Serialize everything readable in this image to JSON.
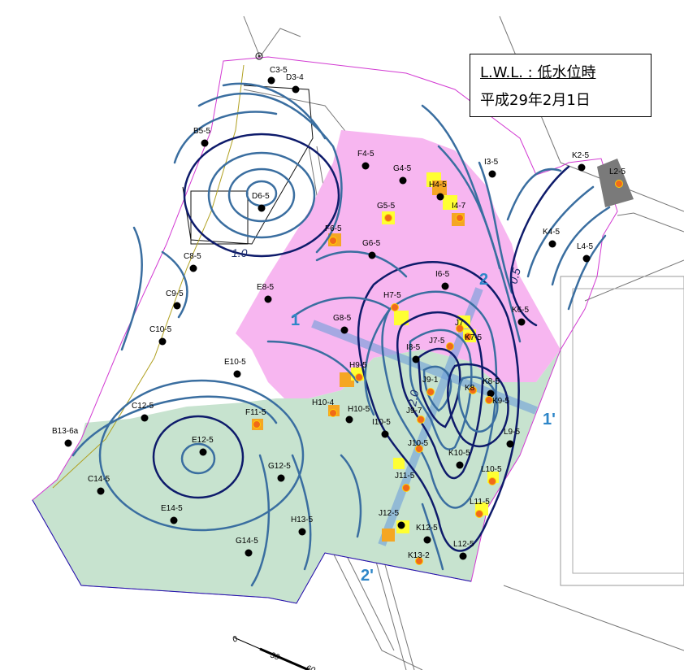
{
  "legend": {
    "title": "L.W.L. : 低水位時",
    "date": "平成29年2月1日"
  },
  "colors": {
    "pink_zone": "#f7b6f0",
    "green_zone": "#c7e3cf",
    "contour_blue": "#3a6ea0",
    "contour_dark": "#0e1b6b",
    "section_line": "#6e9fd8",
    "highlight_yellow": "#ffff33",
    "highlight_orange": "#f5a623",
    "well_dot": "#000000",
    "well_dot_orange": "#f06a1a",
    "boundary_magenta": "#d23ad2"
  },
  "contour_labels": [
    "1.0",
    "0.5",
    "2.0"
  ],
  "section_labels": [
    "1",
    "1'",
    "2",
    "2'"
  ],
  "scale": {
    "ticks": [
      "0",
      "30",
      "60"
    ]
  },
  "wells": [
    {
      "id": "C3-5",
      "type": "black"
    },
    {
      "id": "D3-4",
      "type": "black"
    },
    {
      "id": "B5-5",
      "type": "black"
    },
    {
      "id": "F4-5",
      "type": "black"
    },
    {
      "id": "G4-5",
      "type": "black"
    },
    {
      "id": "H4-5",
      "type": "black"
    },
    {
      "id": "I3-5",
      "type": "black"
    },
    {
      "id": "K2-5",
      "type": "black"
    },
    {
      "id": "L2-5",
      "type": "orange"
    },
    {
      "id": "D6-5",
      "type": "black"
    },
    {
      "id": "G5-5",
      "type": "orange"
    },
    {
      "id": "I4-7",
      "type": "orange"
    },
    {
      "id": "F6-5",
      "type": "orange"
    },
    {
      "id": "G6-5",
      "type": "black"
    },
    {
      "id": "K4-5",
      "type": "black"
    },
    {
      "id": "L4-5",
      "type": "black"
    },
    {
      "id": "C8-5",
      "type": "black"
    },
    {
      "id": "I6-5",
      "type": "black"
    },
    {
      "id": "E8-5",
      "type": "black"
    },
    {
      "id": "C9-5",
      "type": "black"
    },
    {
      "id": "H7-5",
      "type": "orange"
    },
    {
      "id": "K6-5",
      "type": "black"
    },
    {
      "id": "G8-5",
      "type": "black"
    },
    {
      "id": "C10-5",
      "type": "black"
    },
    {
      "id": "J7-5",
      "type": "orange"
    },
    {
      "id": "J7",
      "type": "orange"
    },
    {
      "id": "K7-5",
      "type": "orange"
    },
    {
      "id": "I8-5",
      "type": "black"
    },
    {
      "id": "E10-5",
      "type": "black"
    },
    {
      "id": "H9-5",
      "type": "orange"
    },
    {
      "id": "J9-1",
      "type": "orange"
    },
    {
      "id": "K8-5",
      "type": "black"
    },
    {
      "id": "K8",
      "type": "orange"
    },
    {
      "id": "K9-5",
      "type": "orange"
    },
    {
      "id": "C12-5",
      "type": "black"
    },
    {
      "id": "F11-5",
      "type": "orange"
    },
    {
      "id": "H10-4",
      "type": "orange"
    },
    {
      "id": "H10-5",
      "type": "black"
    },
    {
      "id": "I10-5",
      "type": "black"
    },
    {
      "id": "J9-7",
      "type": "orange"
    },
    {
      "id": "B13-6a",
      "type": "black"
    },
    {
      "id": "E12-5",
      "type": "black"
    },
    {
      "id": "J10-5",
      "type": "orange"
    },
    {
      "id": "K10-5",
      "type": "black"
    },
    {
      "id": "L9-5",
      "type": "black"
    },
    {
      "id": "C14-5",
      "type": "black"
    },
    {
      "id": "G12-5",
      "type": "black"
    },
    {
      "id": "J11-5",
      "type": "orange"
    },
    {
      "id": "L10-5",
      "type": "orange"
    },
    {
      "id": "E14-5",
      "type": "black"
    },
    {
      "id": "L11-5",
      "type": "orange"
    },
    {
      "id": "H13-5",
      "type": "black"
    },
    {
      "id": "J12-5",
      "type": "black"
    },
    {
      "id": "K12-5",
      "type": "black"
    },
    {
      "id": "G14-5",
      "type": "black"
    },
    {
      "id": "L12-5",
      "type": "black"
    },
    {
      "id": "K13-2",
      "type": "orange"
    }
  ]
}
